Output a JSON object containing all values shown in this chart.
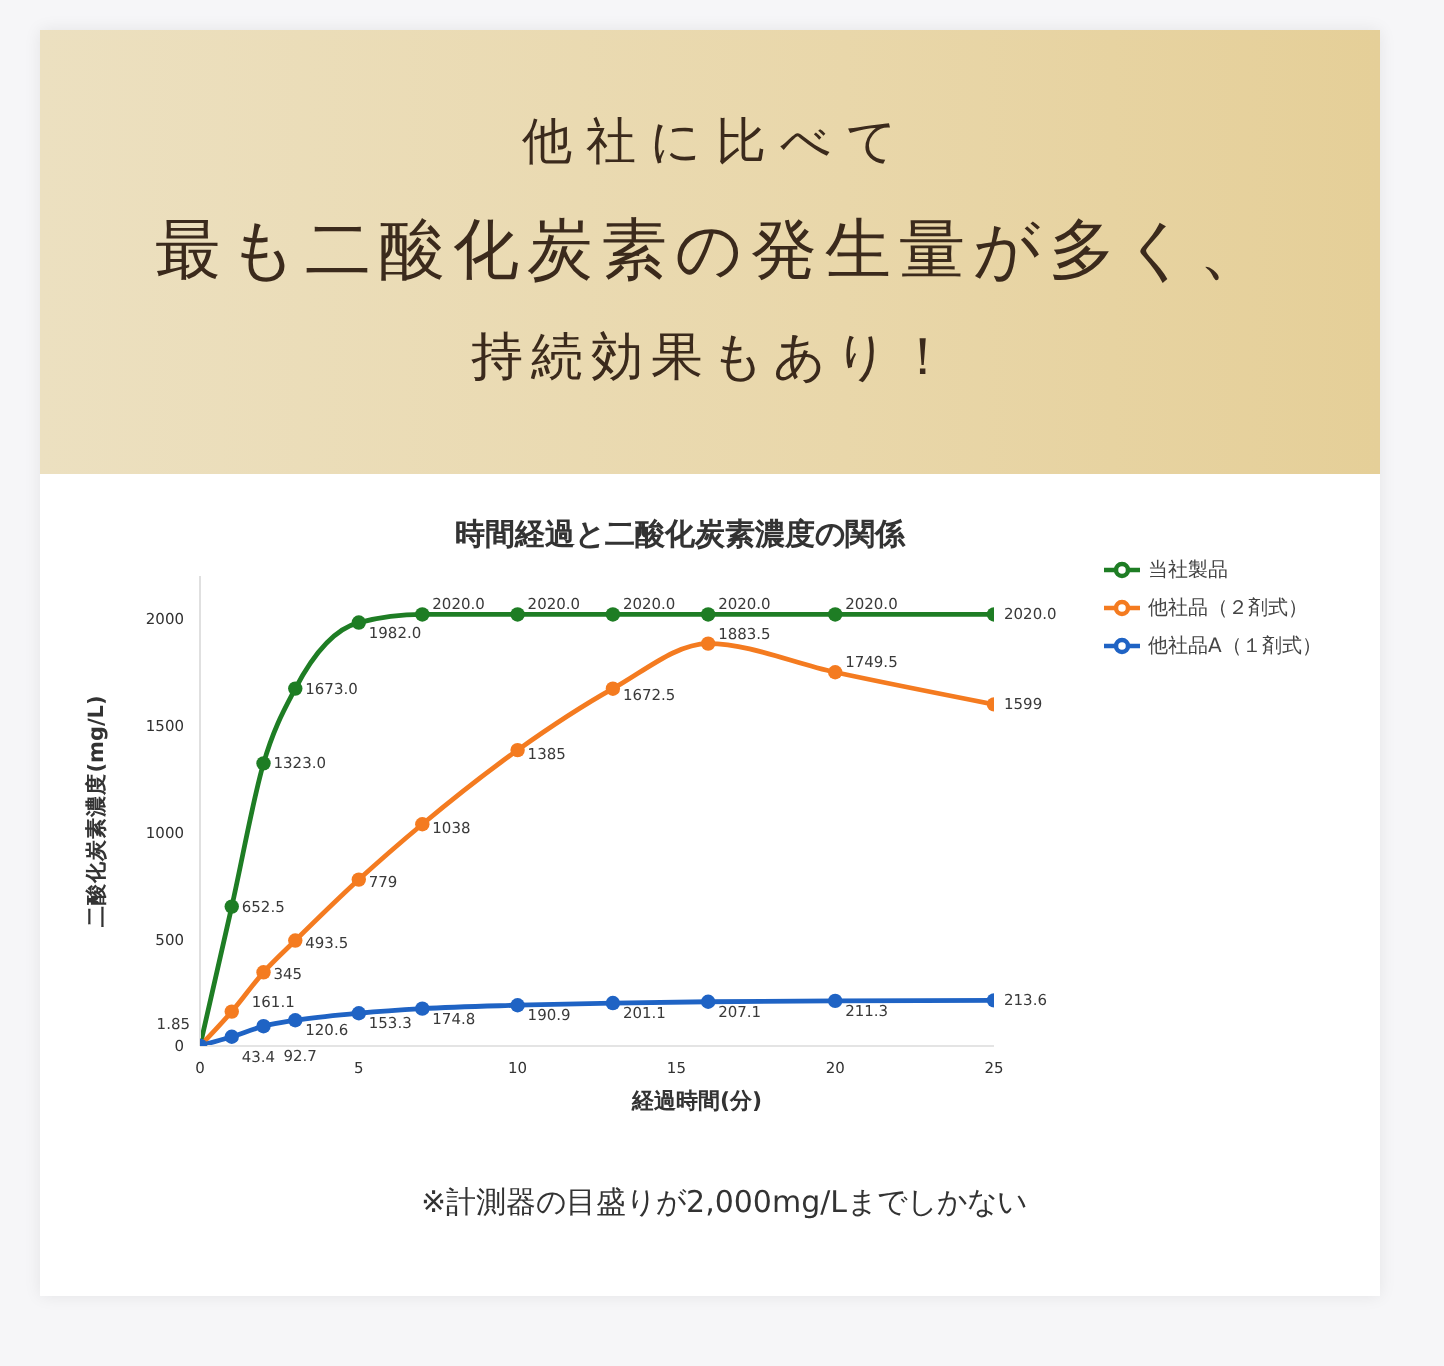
{
  "chart_data": {
    "type": "line",
    "title": "時間経過と二酸化炭素濃度の関係",
    "xlabel": "経過時間(分)",
    "ylabel": "二酸化炭素濃度(mg/L)",
    "annotations": [
      "他社に比べて",
      "最も二酸化炭素の発生量が多く、",
      "持続効果もあり！",
      "※計測器の目盛りが2,000mg/Lまでしかない"
    ],
    "x": [
      0,
      1,
      2,
      3,
      5,
      7,
      10,
      13,
      16,
      20,
      25
    ],
    "series": [
      {
        "name": "当社製品",
        "color": "#1e7d24",
        "values": [
          0,
          652.5,
          1323.0,
          1673.0,
          1982.0,
          2020.0,
          2020.0,
          2020.0,
          2020.0,
          2020.0,
          2020.0
        ],
        "value_labels": [
          null,
          "652.5",
          "1323.0",
          "1673.0",
          "1982.0",
          "2020.0",
          "2020.0",
          "2020.0",
          "2020.0",
          "2020.0",
          "2020.0"
        ]
      },
      {
        "name": "他社品（２剤式）",
        "color": "#f47b20",
        "values": [
          0,
          161.1,
          345,
          493.5,
          779,
          1038,
          1385,
          1672.5,
          1883.5,
          1749.5,
          1599
        ],
        "value_labels": [
          null,
          "161.1",
          "345",
          "493.5",
          "779",
          "1038",
          "1385",
          "1672.5",
          "1883.5",
          "1749.5",
          "1599"
        ]
      },
      {
        "name": "他社品A（１剤式）",
        "color": "#1f63c4",
        "values": [
          1.85,
          43.4,
          92.7,
          120.6,
          153.3,
          174.8,
          190.9,
          201.1,
          207.1,
          211.3,
          213.6
        ],
        "value_labels": [
          "1.85",
          "43.4",
          "92.7",
          "120.6",
          "153.3",
          "174.8",
          "190.9",
          "201.1",
          "207.1",
          "211.3",
          "213.6"
        ]
      }
    ],
    "xlim": [
      0,
      25
    ],
    "xticks": [
      0,
      5,
      10,
      15,
      20,
      25
    ],
    "ylim": [
      0,
      2200
    ],
    "yticks": [
      0,
      500,
      1000,
      1500,
      2000
    ],
    "grid": false,
    "legend": "right",
    "marker": "circle",
    "line_style": "solid"
  }
}
